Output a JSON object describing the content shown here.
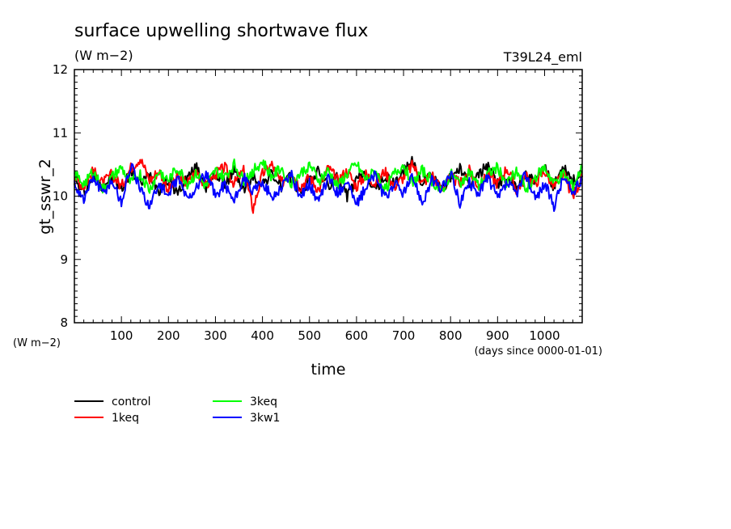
{
  "chart_data": {
    "type": "line",
    "title": "surface upwelling shortwave flux",
    "title_units": "(W m−2)",
    "run_label": "T39L24_eml",
    "ylabel": "gt_sswr_2",
    "ylabel_units": "(W m−2)",
    "xlabel": "time",
    "xlabel_units": "(days since 0000-01-01)",
    "xlim": [
      0,
      1080
    ],
    "ylim": [
      8,
      12
    ],
    "x_ticks": [
      100,
      200,
      300,
      400,
      500,
      600,
      700,
      800,
      900,
      1000
    ],
    "y_ticks": [
      8,
      9,
      10,
      11,
      12
    ],
    "grid": false,
    "legend_position": "bottom-left",
    "series": [
      {
        "name": "control",
        "color": "#000000",
        "x": [
          0,
          20,
          40,
          60,
          80,
          100,
          120,
          140,
          160,
          180,
          200,
          220,
          240,
          260,
          280,
          300,
          320,
          340,
          360,
          380,
          400,
          420,
          440,
          460,
          480,
          500,
          520,
          540,
          560,
          580,
          600,
          620,
          640,
          660,
          680,
          700,
          720,
          740,
          760,
          780,
          800,
          820,
          840,
          860,
          880,
          900,
          920,
          940,
          960,
          980,
          1000,
          1020,
          1040,
          1060,
          1080
        ],
        "values": [
          10.25,
          10.05,
          10.35,
          10.15,
          10.3,
          10.1,
          10.4,
          10.2,
          10.35,
          10.1,
          10.25,
          10.05,
          10.3,
          10.45,
          10.15,
          10.35,
          10.2,
          10.4,
          10.1,
          10.3,
          10.2,
          10.35,
          10.15,
          10.3,
          10.05,
          10.25,
          10.4,
          10.15,
          10.3,
          10.0,
          10.25,
          10.35,
          10.1,
          10.3,
          10.2,
          10.4,
          10.55,
          10.2,
          10.35,
          10.1,
          10.3,
          10.45,
          10.15,
          10.35,
          10.5,
          10.2,
          10.3,
          10.1,
          10.35,
          10.2,
          10.45,
          10.15,
          10.5,
          10.25,
          10.3
        ]
      },
      {
        "name": "1keq",
        "color": "#ff0000",
        "x": [
          0,
          20,
          40,
          60,
          80,
          100,
          120,
          140,
          160,
          180,
          200,
          220,
          240,
          260,
          280,
          300,
          320,
          340,
          360,
          380,
          400,
          420,
          440,
          460,
          480,
          500,
          520,
          540,
          560,
          580,
          600,
          620,
          640,
          660,
          680,
          700,
          720,
          740,
          760,
          780,
          800,
          820,
          840,
          860,
          880,
          900,
          920,
          940,
          960,
          980,
          1000,
          1020,
          1040,
          1060,
          1080
        ],
        "values": [
          10.3,
          10.15,
          10.4,
          10.2,
          10.35,
          10.15,
          10.45,
          10.6,
          10.25,
          10.4,
          10.1,
          10.3,
          10.2,
          10.4,
          10.15,
          10.35,
          10.45,
          10.2,
          10.4,
          9.8,
          10.35,
          10.5,
          10.2,
          10.4,
          10.15,
          10.3,
          10.1,
          10.45,
          10.25,
          10.4,
          10.15,
          10.35,
          10.2,
          10.4,
          10.15,
          10.3,
          10.5,
          10.2,
          10.35,
          10.1,
          10.3,
          10.2,
          10.4,
          10.15,
          10.35,
          10.2,
          10.45,
          10.1,
          10.3,
          10.2,
          10.4,
          10.15,
          10.35,
          10.0,
          10.3
        ]
      },
      {
        "name": "3keq",
        "color": "#00ff00",
        "x": [
          0,
          20,
          40,
          60,
          80,
          100,
          120,
          140,
          160,
          180,
          200,
          220,
          240,
          260,
          280,
          300,
          320,
          340,
          360,
          380,
          400,
          420,
          440,
          460,
          480,
          500,
          520,
          540,
          560,
          580,
          600,
          620,
          640,
          660,
          680,
          700,
          720,
          740,
          760,
          780,
          800,
          820,
          840,
          860,
          880,
          900,
          920,
          940,
          960,
          980,
          1000,
          1020,
          1040,
          1060,
          1080
        ],
        "values": [
          10.35,
          10.2,
          10.4,
          10.1,
          10.3,
          10.45,
          10.2,
          10.35,
          10.1,
          10.4,
          10.25,
          10.45,
          10.2,
          10.35,
          10.15,
          10.4,
          10.3,
          10.5,
          10.25,
          10.4,
          10.55,
          10.3,
          10.45,
          10.2,
          10.35,
          10.5,
          10.25,
          10.4,
          10.15,
          10.35,
          10.5,
          10.25,
          10.4,
          10.1,
          10.35,
          10.5,
          10.2,
          10.4,
          10.25,
          10.05,
          10.35,
          10.2,
          10.4,
          10.15,
          10.35,
          10.45,
          10.2,
          10.4,
          10.1,
          10.3,
          10.45,
          10.2,
          10.35,
          10.15,
          10.45
        ]
      },
      {
        "name": "3kw1",
        "color": "#0000ff",
        "x": [
          0,
          20,
          40,
          60,
          80,
          100,
          120,
          140,
          160,
          180,
          200,
          220,
          240,
          260,
          280,
          300,
          320,
          340,
          360,
          380,
          400,
          420,
          440,
          460,
          480,
          500,
          520,
          540,
          560,
          580,
          600,
          620,
          640,
          660,
          680,
          700,
          720,
          740,
          760,
          780,
          800,
          820,
          840,
          860,
          880,
          900,
          920,
          940,
          960,
          980,
          1000,
          1020,
          1040,
          1060,
          1080
        ],
        "values": [
          10.2,
          9.95,
          10.3,
          10.05,
          10.25,
          9.9,
          10.5,
          10.1,
          9.85,
          10.2,
          10.0,
          10.3,
          9.95,
          10.15,
          10.35,
          10.0,
          10.2,
          9.9,
          10.3,
          10.05,
          10.25,
          9.95,
          10.15,
          10.35,
          10.0,
          10.2,
          9.9,
          10.3,
          10.05,
          10.25,
          9.85,
          10.15,
          10.35,
          9.95,
          10.2,
          10.05,
          10.3,
          9.9,
          10.25,
          10.1,
          10.35,
          9.9,
          10.2,
          10.05,
          10.3,
          9.95,
          10.2,
          10.05,
          10.35,
          9.95,
          10.2,
          9.85,
          10.3,
          10.05,
          10.25
        ]
      }
    ]
  }
}
